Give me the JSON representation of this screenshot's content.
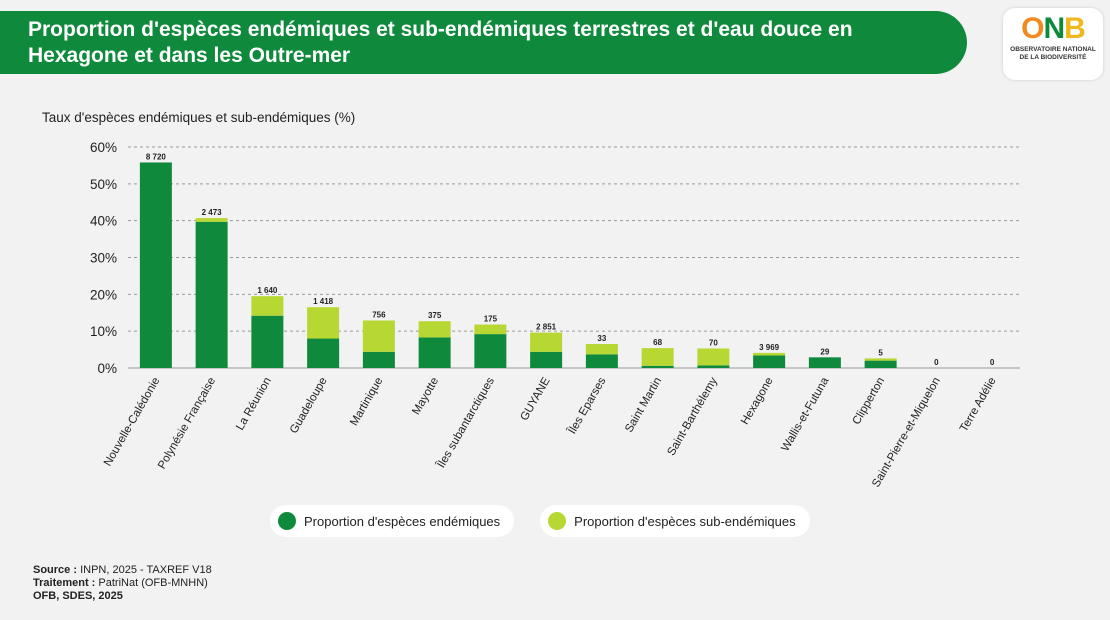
{
  "header": {
    "title": "Proportion d'espèces endémiques et sub-endémiques terrestres et d'eau douce en Hexagone et dans les Outre-mer"
  },
  "logo": {
    "mark_o": "O",
    "mark_n": "N",
    "mark_b": "B",
    "line1": "OBSERVATOIRE NATIONAL",
    "line2": "DE LA BIODIVERSITÉ"
  },
  "colors": {
    "endemic": "#0f8a3c",
    "subendemic": "#b7d733",
    "banner": "#0f8a3c"
  },
  "chart_data": {
    "type": "bar",
    "stacked": true,
    "title": "Taux d'espèces endémiques et sub-endémiques (%)",
    "ylabel": "Taux d'espèces endémiques et sub-endémiques (%)",
    "ylim": [
      0,
      60
    ],
    "yticks": [
      0,
      10,
      20,
      30,
      40,
      50,
      60
    ],
    "ytick_labels": [
      "0%",
      "10%",
      "20%",
      "30%",
      "40%",
      "50%",
      "60%"
    ],
    "grid": true,
    "categories": [
      "Nouvelle-Calédonie",
      "Polynésie Française",
      "La Réunion",
      "Guadeloupe",
      "Martinique",
      "Mayotte",
      "Îles subantarctiques",
      "GUYANE",
      "Îles Eparses",
      "Saint Martin",
      "Saint-Barthélemy",
      "Hexagone",
      "Wallis-et-Futuna",
      "Clipperton",
      "Saint-Pierre-et-Miquelon",
      "Terre Adélie"
    ],
    "series": [
      {
        "name": "Proportion d'espèces endémiques",
        "values": [
          55.8,
          39.7,
          14.2,
          8.0,
          4.4,
          8.3,
          9.2,
          4.4,
          3.7,
          0.6,
          0.7,
          3.4,
          2.9,
          2.0,
          0,
          0
        ]
      },
      {
        "name": "Proportion d'espèces sub-endémiques",
        "values": [
          0,
          1.0,
          5.3,
          8.5,
          8.5,
          4.4,
          2.6,
          5.2,
          2.8,
          4.8,
          4.6,
          0.7,
          0,
          0.6,
          0,
          0
        ]
      }
    ],
    "labels": [
      "8 720",
      "2 473",
      "1 640",
      "1 418",
      "756",
      "375",
      "175",
      "2 851",
      "33",
      "68",
      "70",
      "3 969",
      "29",
      "5",
      "0",
      "0"
    ],
    "legend_position": "bottom"
  },
  "footer": {
    "source_label": "Source :",
    "source_text": " INPN, 2025 - TAXREF V18",
    "treatment_label": "Traitement :",
    "treatment_text": " PatriNat (OFB-MNHN)",
    "credit": "OFB, SDES, 2025"
  }
}
